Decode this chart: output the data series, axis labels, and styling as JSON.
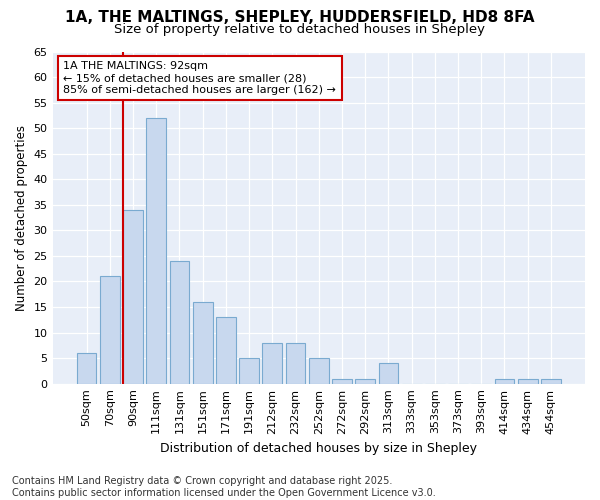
{
  "title_line1": "1A, THE MALTINGS, SHEPLEY, HUDDERSFIELD, HD8 8FA",
  "title_line2": "Size of property relative to detached houses in Shepley",
  "xlabel": "Distribution of detached houses by size in Shepley",
  "ylabel": "Number of detached properties",
  "categories": [
    "50sqm",
    "70sqm",
    "90sqm",
    "111sqm",
    "131sqm",
    "151sqm",
    "171sqm",
    "191sqm",
    "212sqm",
    "232sqm",
    "252sqm",
    "272sqm",
    "292sqm",
    "313sqm",
    "333sqm",
    "353sqm",
    "373sqm",
    "393sqm",
    "414sqm",
    "434sqm",
    "454sqm"
  ],
  "values": [
    6,
    21,
    34,
    52,
    24,
    16,
    13,
    5,
    8,
    8,
    5,
    1,
    1,
    4,
    0,
    0,
    0,
    0,
    1,
    1,
    1
  ],
  "bar_color": "#c8d8ee",
  "bar_edge_color": "#7aaad0",
  "vline_color": "#cc0000",
  "annotation_text": "1A THE MALTINGS: 92sqm\n← 15% of detached houses are smaller (28)\n85% of semi-detached houses are larger (162) →",
  "annotation_box_color": "#ffffff",
  "annotation_box_edge": "#cc0000",
  "footer_text": "Contains HM Land Registry data © Crown copyright and database right 2025.\nContains public sector information licensed under the Open Government Licence v3.0.",
  "ylim": [
    0,
    65
  ],
  "yticks": [
    0,
    5,
    10,
    15,
    20,
    25,
    30,
    35,
    40,
    45,
    50,
    55,
    60,
    65
  ],
  "plot_bg_color": "#e8eef8",
  "fig_bg_color": "#ffffff",
  "title_fontsize": 11,
  "subtitle_fontsize": 9.5,
  "xlabel_fontsize": 9,
  "ylabel_fontsize": 8.5,
  "tick_fontsize": 8,
  "annotation_fontsize": 8,
  "footer_fontsize": 7
}
